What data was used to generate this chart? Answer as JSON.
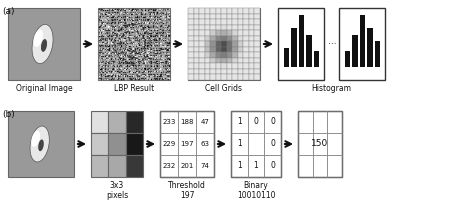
{
  "bg_color": "#ffffff",
  "label_a": "(a)",
  "label_b": "(b)",
  "row_a_labels": [
    "Original Image",
    "LBP Result",
    "Cell Grids",
    "Histogram"
  ],
  "row_b_labels": [
    "3x3\npixels",
    "Threshold\n197",
    "Binary\n10010110"
  ],
  "dots": "...",
  "threshold_values": [
    [
      "233",
      "188",
      "47"
    ],
    [
      "229",
      "197",
      "63"
    ],
    [
      "232",
      "201",
      "74"
    ]
  ],
  "binary_values": [
    [
      "1",
      "0",
      "0"
    ],
    [
      "1",
      "",
      "0"
    ],
    [
      "1",
      "1",
      "0"
    ]
  ],
  "result_value": "150",
  "pixel_colors": [
    [
      "#e0e0e0",
      "#b0b0b0",
      "#282828"
    ],
    [
      "#c8c8c8",
      "#909090",
      "#181818"
    ],
    [
      "#b8b8b8",
      "#a8a8a8",
      "#383838"
    ]
  ],
  "hist_bars_left": [
    1.5,
    3.0,
    4.0,
    2.5,
    1.2
  ],
  "hist_bars_right": [
    1.2,
    2.5,
    4.0,
    3.0,
    2.0
  ],
  "arrow_color": "#111111",
  "font_size": 5.5
}
